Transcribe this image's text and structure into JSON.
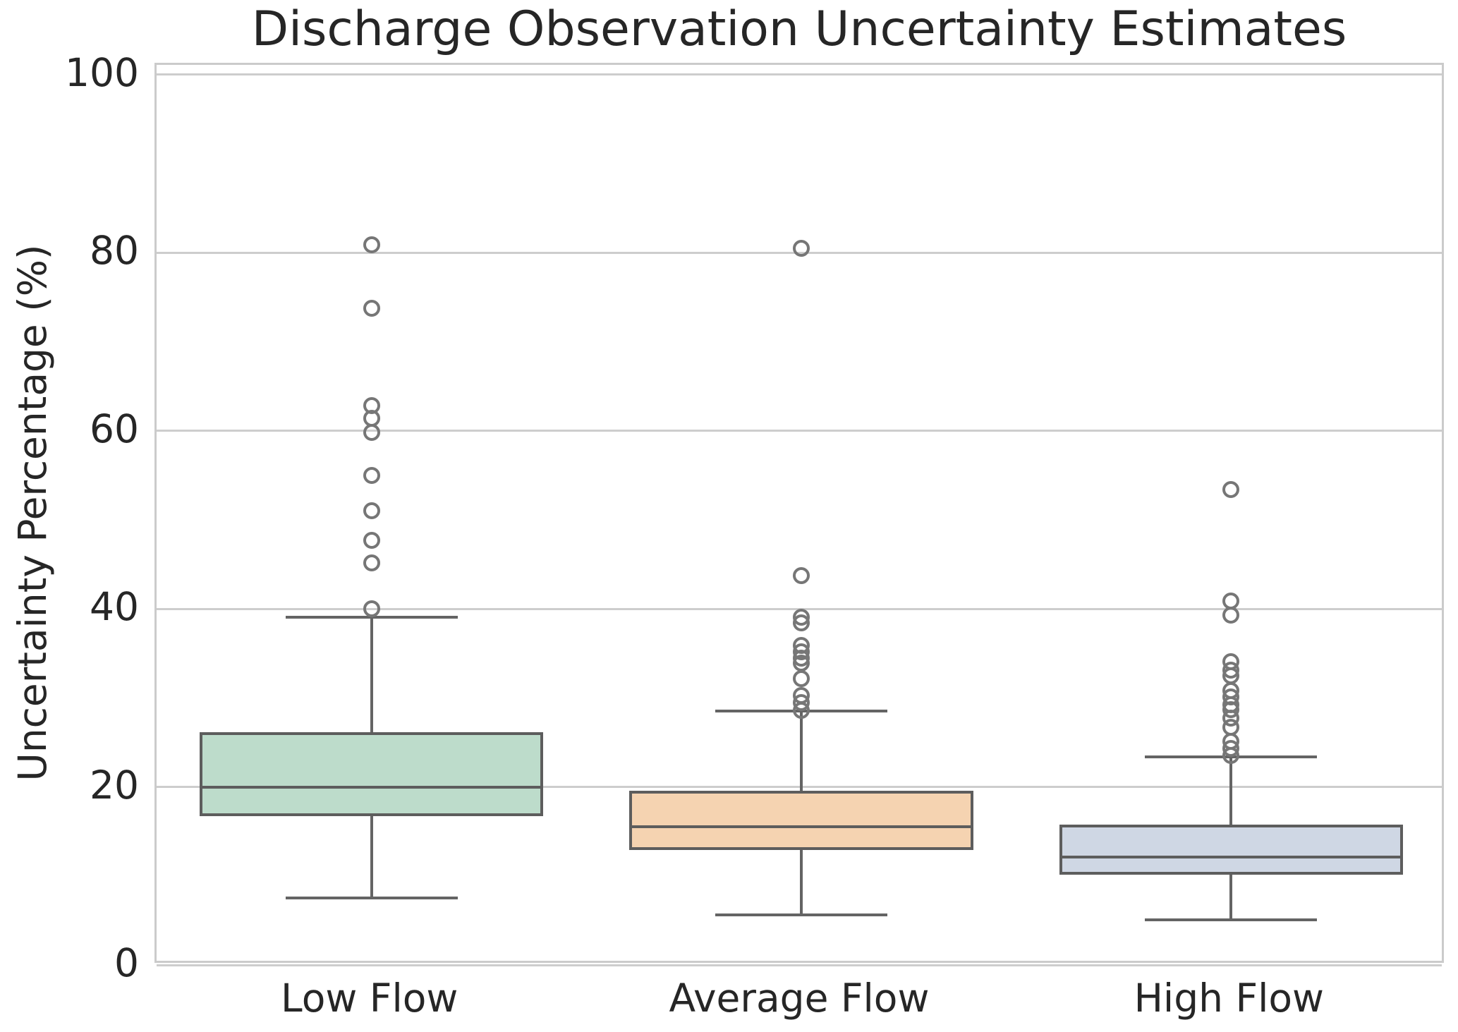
{
  "title": "Discharge Observation Uncertainty Estimates",
  "chart_data": {
    "type": "boxplot",
    "title": "Discharge Observation Uncertainty Estimates",
    "xlabel": "",
    "ylabel": "Uncertainty Percentage (%)",
    "categories": [
      "Low Flow",
      "Average Flow",
      "High Flow"
    ],
    "yticks": [
      0,
      20,
      40,
      60,
      80,
      100
    ],
    "ylim": [
      0,
      101.1
    ],
    "grid": "horizontal",
    "legend": "none",
    "series": [
      {
        "name": "Low Flow",
        "whisker_low": 7.5,
        "q1": 16.9,
        "median": 20.0,
        "q3": 26.0,
        "whisker_high": 39.1,
        "outliers": [
          40.0,
          45.2,
          47.7,
          51.0,
          55.0,
          59.8,
          61.4,
          62.8,
          73.8,
          80.9
        ],
        "fill_color": "#bddccb"
      },
      {
        "name": "Average Flow",
        "whisker_low": 5.6,
        "q1": 13.1,
        "median": 15.5,
        "q3": 19.4,
        "whisker_high": 28.5,
        "outliers": [
          28.6,
          29.5,
          30.3,
          32.2,
          33.9,
          34.5,
          35.2,
          35.9,
          38.4,
          39.1,
          43.7,
          80.5
        ],
        "fill_color": "#f5d3b1"
      },
      {
        "name": "High Flow",
        "whisker_low": 5.1,
        "q1": 10.3,
        "median": 12.1,
        "q3": 15.6,
        "whisker_high": 23.4,
        "outliers": [
          23.5,
          24.3,
          25.1,
          26.7,
          27.7,
          28.7,
          29.2,
          30.1,
          30.8,
          32.5,
          33.1,
          34.1,
          39.3,
          40.9,
          53.4
        ],
        "fill_color": "#cfd7e4"
      }
    ],
    "style_colors": {
      "box_edge": "#5d5d5d",
      "whisker": "#646464",
      "flier_edge": "#767676",
      "gridline": "#cdcdcd",
      "spine": "#cbcbcb",
      "text": "#262626"
    }
  }
}
